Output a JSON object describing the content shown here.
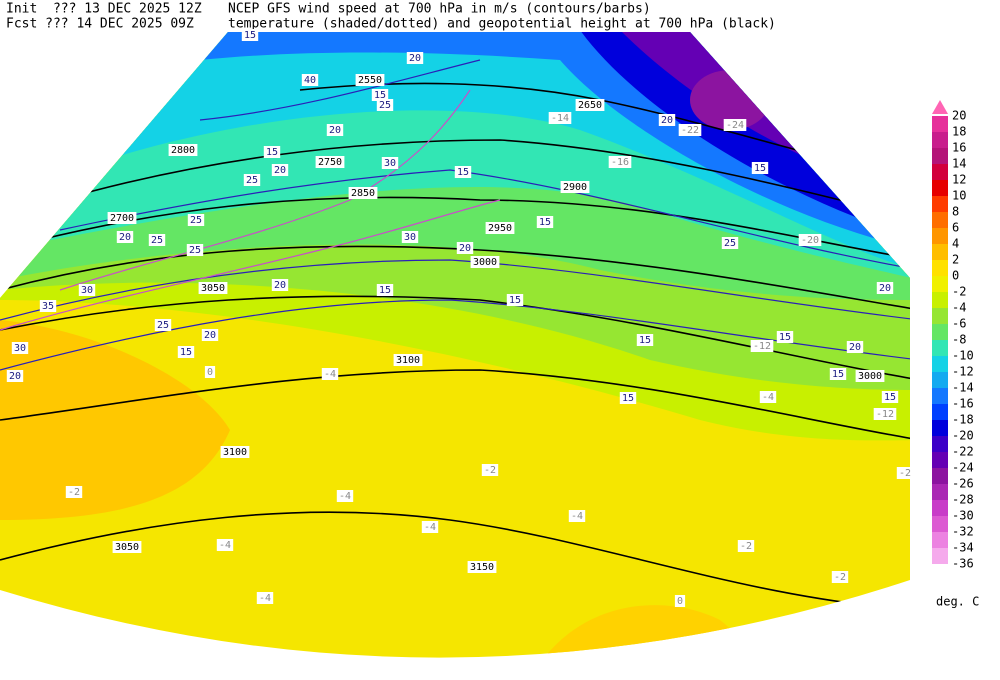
{
  "header": {
    "init": "Init  ??? 13 DEC 2025 12Z",
    "fcst": "Fcst ??? 14 DEC 2025 09Z",
    "line1": "NCEP GFS wind speed at 700 hPa in m/s (contours/barbs)",
    "line2": "temperature (shaded/dotted) and geopotential height at 700 hPa (black)"
  },
  "colorbar": {
    "ticks": [
      20,
      18,
      16,
      14,
      12,
      10,
      8,
      6,
      4,
      2,
      0,
      -2,
      -4,
      -6,
      -8,
      -10,
      -12,
      -14,
      -16,
      -18,
      -20,
      -22,
      -24,
      -26,
      -28,
      -30,
      -32,
      -34,
      -36
    ],
    "colors": [
      "#e6309a",
      "#c81e8c",
      "#b41478",
      "#d2003c",
      "#e60000",
      "#ff3c00",
      "#ff6e00",
      "#ff9600",
      "#ffbe00",
      "#ffe100",
      "#f0f000",
      "#c8f000",
      "#96e632",
      "#64e664",
      "#32e6b4",
      "#14d2e6",
      "#14aaf0",
      "#1478ff",
      "#0040ff",
      "#0000dc",
      "#3c00c8",
      "#6400b4",
      "#8c14a0",
      "#aa28b4",
      "#c83cc8",
      "#dc5ad2",
      "#ec82e1",
      "#f5aaec"
    ],
    "unit": "deg. C"
  },
  "map": {
    "height_labels": [
      2550,
      2650,
      2700,
      2750,
      2800,
      2850,
      2900,
      2950,
      3000,
      3050,
      3100,
      3150,
      3050,
      3100,
      3000
    ],
    "wind_labels": [
      15,
      40,
      20,
      15,
      25,
      15,
      20,
      25,
      30,
      15,
      25,
      20,
      25,
      30,
      20,
      25,
      15,
      20,
      15,
      15,
      30,
      35,
      25,
      20,
      15,
      20,
      30,
      20,
      15,
      25,
      20,
      15,
      15,
      20,
      15,
      15,
      15,
      20
    ],
    "temperature_labels": [
      -14,
      -16,
      -12,
      -12,
      -2,
      -2,
      -4,
      -4,
      -4,
      -2,
      -2,
      -2,
      0,
      0,
      -4,
      -4,
      -4,
      -4,
      -24,
      -22,
      -20
    ]
  }
}
